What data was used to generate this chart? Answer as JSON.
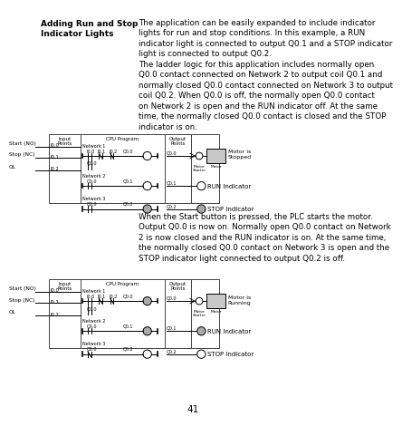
{
  "title_left": "Adding Run and Stop\nIndicator Lights",
  "para1": "The application can be easily expanded to include indicator\nlights for run and stop conditions. In this example, a RUN\nindicator light is connected to output Q0.1 and a STOP indicator\nlight is connected to output Q0.2.",
  "para2": "The ladder logic for this application includes normally open\nQ0.0 contact connected on Network 2 to output coil Q0.1 and\nnormally closed Q0.0 contact connected on Network 3 to output\ncoil Q0.2. When Q0.0 is off, the normally open Q0.0 contact\non Network 2 is open and the RUN indicator off. At the same\ntime, the normally closed Q0.0 contact is closed and the STOP\nindicator is on.",
  "para3": "When the Start button is pressed, the PLC starts the motor.\nOutput Q0.0 is now on. Normally open Q0.0 contact on Network\n2 is now closed and the RUN indicator is on. At the same time,\nthe normally closed Q0.0 contact on Network 3 is open and the\nSTOP indicator light connected to output Q0.2 is off.",
  "page_number": "41",
  "bg_color": "#ffffff"
}
